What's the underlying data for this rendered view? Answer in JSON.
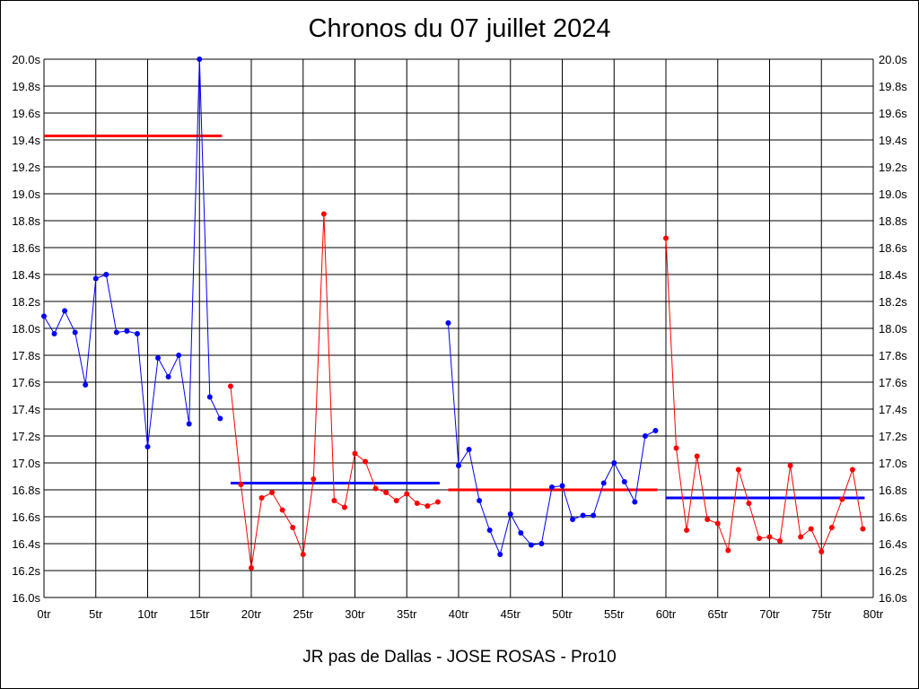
{
  "chart_data": {
    "type": "line",
    "title": "Chronos du 07 juillet 2024",
    "footer": "JR pas de Dallas - JOSE ROSAS - Pro10",
    "xlim": [
      0,
      80
    ],
    "ylim": [
      16.0,
      20.0
    ],
    "xticks": [
      0,
      5,
      10,
      15,
      20,
      25,
      30,
      35,
      40,
      45,
      50,
      55,
      60,
      65,
      70,
      75,
      80
    ],
    "xtick_labels": [
      "0tr",
      "5tr",
      "10tr",
      "15tr",
      "20tr",
      "25tr",
      "30tr",
      "35tr",
      "40tr",
      "45tr",
      "50tr",
      "55tr",
      "60tr",
      "65tr",
      "70tr",
      "75tr",
      "80tr"
    ],
    "yticks": [
      16.0,
      16.2,
      16.4,
      16.6,
      16.8,
      17.0,
      17.2,
      17.4,
      17.6,
      17.8,
      18.0,
      18.2,
      18.4,
      18.6,
      18.8,
      19.0,
      19.2,
      19.4,
      19.6,
      19.8,
      20.0
    ],
    "ytick_labels": [
      "16.0s",
      "16.2s",
      "16.4s",
      "16.6s",
      "16.8s",
      "17.0s",
      "17.2s",
      "17.4s",
      "17.6s",
      "17.8s",
      "18.0s",
      "18.2s",
      "18.4s",
      "18.6s",
      "18.8s",
      "19.0s",
      "19.2s",
      "19.4s",
      "19.6s",
      "19.8s",
      "20.0s"
    ],
    "grid": true,
    "series": [
      {
        "color": "#0000ff",
        "x": [
          0,
          1,
          2,
          3,
          4,
          5,
          6,
          7,
          8,
          9,
          10,
          11,
          12,
          13,
          14,
          15,
          16,
          17
        ],
        "values": [
          18.09,
          17.96,
          18.13,
          17.97,
          17.58,
          18.37,
          18.4,
          17.97,
          17.98,
          17.96,
          17.12,
          17.78,
          17.64,
          17.8,
          17.29,
          20.0,
          17.49,
          17.33
        ]
      },
      {
        "color": "#ff0000",
        "x": [
          18,
          19,
          20,
          21,
          22,
          23,
          24,
          25,
          26,
          27,
          28,
          29,
          30,
          31,
          32,
          33,
          34,
          35,
          36,
          37,
          38
        ],
        "values": [
          17.57,
          16.84,
          16.22,
          16.74,
          16.78,
          16.65,
          16.52,
          16.32,
          16.88,
          18.85,
          16.72,
          16.67,
          17.07,
          17.01,
          16.81,
          16.78,
          16.72,
          16.77,
          16.7,
          16.68,
          16.71
        ]
      },
      {
        "color": "#0000ff",
        "x": [
          39,
          40,
          41,
          42,
          43,
          44,
          45,
          46,
          47,
          48,
          49,
          50,
          51,
          52,
          53,
          54,
          55,
          56,
          57,
          58,
          59
        ],
        "values": [
          18.04,
          16.98,
          17.1,
          16.72,
          16.5,
          16.32,
          16.62,
          16.48,
          16.39,
          16.4,
          16.82,
          16.83,
          16.58,
          16.61,
          16.61,
          16.85,
          17.0,
          16.86,
          16.71,
          17.2,
          17.24
        ]
      },
      {
        "color": "#ff0000",
        "x": [
          60,
          61,
          62,
          63,
          64,
          65,
          66,
          67,
          68,
          69,
          70,
          71,
          72,
          73,
          74,
          75,
          76,
          77,
          78,
          79
        ],
        "values": [
          18.67,
          17.11,
          16.5,
          17.05,
          16.58,
          16.55,
          16.35,
          16.95,
          16.7,
          16.44,
          16.45,
          16.42,
          16.98,
          16.45,
          16.51,
          16.34,
          16.52,
          16.73,
          16.95,
          16.51
        ]
      }
    ],
    "averages": [
      {
        "color": "#ff0000",
        "x_start": 0,
        "x_end": 17,
        "value": 19.43
      },
      {
        "color": "#0000ff",
        "x_start": 18,
        "x_end": 38,
        "value": 16.85
      },
      {
        "color": "#ff0000",
        "x_start": 39,
        "x_end": 59,
        "value": 16.8
      },
      {
        "color": "#0000ff",
        "x_start": 60,
        "x_end": 79,
        "value": 16.74
      }
    ]
  }
}
